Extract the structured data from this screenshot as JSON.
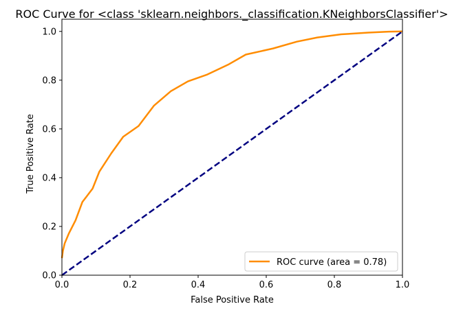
{
  "chart_data": {
    "type": "line",
    "title": "ROC Curve for <class 'sklearn.neighbors._classification.KNeighborsClassifier'>",
    "xlabel": "False Positive Rate",
    "ylabel": "True Positive Rate",
    "xlim": [
      0.0,
      1.0
    ],
    "ylim": [
      0.0,
      1.05
    ],
    "x_ticks": [
      "0.0",
      "0.2",
      "0.4",
      "0.6",
      "0.8",
      "1.0"
    ],
    "y_ticks": [
      "0.0",
      "0.2",
      "0.4",
      "0.6",
      "0.8",
      "1.0"
    ],
    "grid": false,
    "legend_position": "lower-right",
    "series": [
      {
        "name": "ROC curve (area = 0.78)",
        "color": "#ff8c00",
        "line_style": "solid",
        "x": [
          0.0,
          0.003,
          0.008,
          0.02,
          0.04,
          0.06,
          0.09,
          0.11,
          0.145,
          0.18,
          0.225,
          0.27,
          0.32,
          0.37,
          0.425,
          0.49,
          0.54,
          0.62,
          0.69,
          0.75,
          0.82,
          0.9,
          0.96,
          1.0
        ],
        "y": [
          0.07,
          0.1,
          0.13,
          0.17,
          0.225,
          0.3,
          0.355,
          0.425,
          0.5,
          0.568,
          0.612,
          0.695,
          0.755,
          0.795,
          0.822,
          0.865,
          0.905,
          0.93,
          0.958,
          0.975,
          0.988,
          0.995,
          0.999,
          1.0
        ]
      },
      {
        "color": "#000080",
        "line_style": "dashed",
        "x": [
          0.0,
          1.0
        ],
        "y": [
          0.0,
          1.0
        ]
      }
    ]
  }
}
